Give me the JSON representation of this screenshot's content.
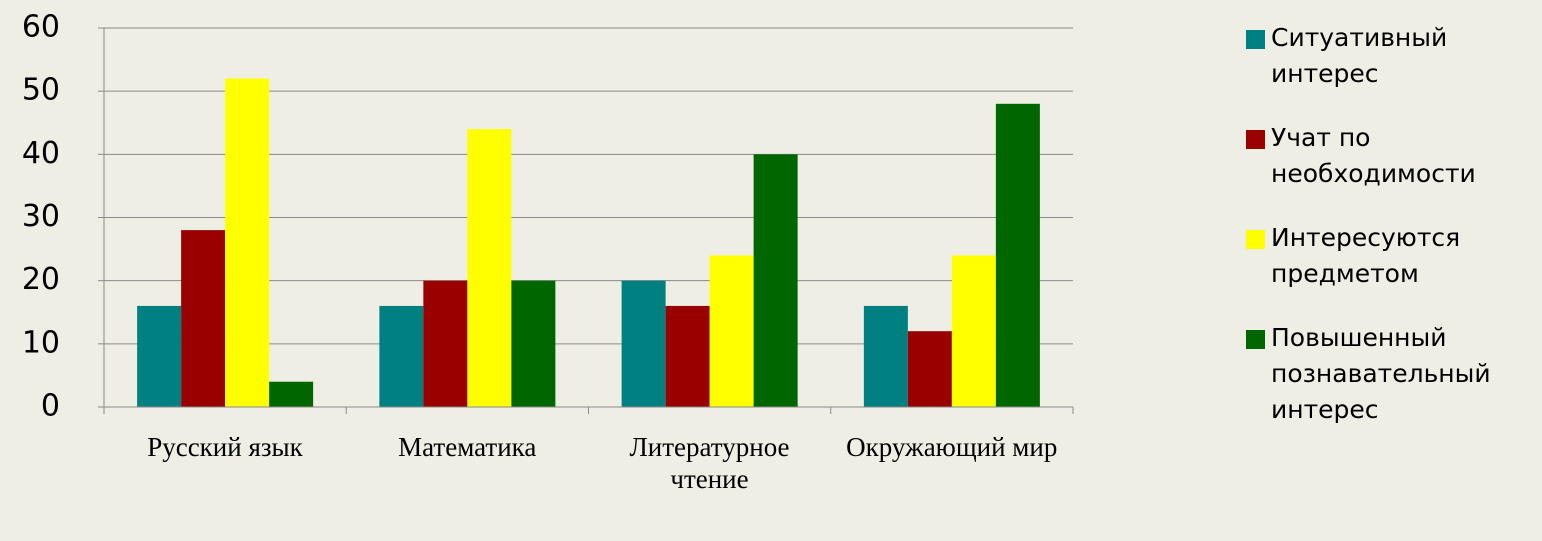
{
  "chart_data": {
    "type": "bar",
    "categories": [
      "Русский язык",
      "Математика",
      "Литературное чтение",
      "Окружающий мир"
    ],
    "series": [
      {
        "name": "Ситуативный интерес",
        "color": "#008080",
        "values": [
          16,
          16,
          20,
          16
        ]
      },
      {
        "name": "Учат по необходимости",
        "color": "#990000",
        "values": [
          28,
          20,
          16,
          12
        ]
      },
      {
        "name": "Интересуются предметом",
        "color": "#ffff00",
        "values": [
          52,
          44,
          24,
          24
        ]
      },
      {
        "name": "Повышенный познавательный интерес",
        "color": "#006600",
        "values": [
          4,
          20,
          40,
          48
        ]
      }
    ],
    "ylim": [
      0,
      60
    ],
    "yticks": [
      0,
      10,
      20,
      30,
      40,
      50,
      60
    ],
    "grid": true,
    "legend": "right"
  }
}
